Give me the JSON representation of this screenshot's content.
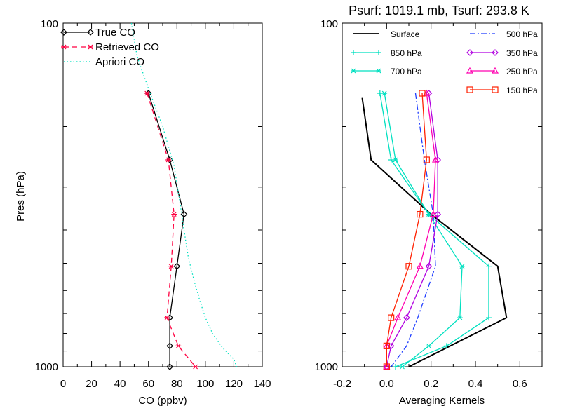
{
  "chart_data": [
    {
      "type": "line",
      "xlabel": "CO (ppbv)",
      "ylabel": "Pres (hPa)",
      "xlim": [
        0,
        140
      ],
      "ylim": [
        1000,
        100
      ],
      "y_scale": "log",
      "x_tick_labels": [
        "0",
        "20",
        "40",
        "60",
        "80",
        "100",
        "120",
        "140"
      ],
      "y_tick_labels": [
        "100",
        "1000"
      ],
      "legend_position": "top-left",
      "series": [
        {
          "name": "True CO",
          "color": "#000000",
          "style": "solid",
          "marker": "diamond",
          "points": [
            [
              60,
              160
            ],
            [
              75,
              250
            ],
            [
              85,
              360
            ],
            [
              80,
              510
            ],
            [
              75,
              720
            ],
            [
              75,
              870
            ],
            [
              75,
              1000
            ]
          ]
        },
        {
          "name": "Retrieved CO",
          "color": "#ff0040",
          "style": "dashed",
          "marker": "asterisk",
          "points": [
            [
              59,
              160
            ],
            [
              74,
              250
            ],
            [
              78,
              360
            ],
            [
              76,
              510
            ],
            [
              73,
              720
            ],
            [
              81,
              870
            ],
            [
              93,
              1000
            ]
          ]
        },
        {
          "name": "Apriori CO",
          "color": "#00e0c0",
          "style": "dotted",
          "marker": "none",
          "points": [
            [
              48,
              100
            ],
            [
              52,
              125
            ],
            [
              60,
              155
            ],
            [
              70,
              200
            ],
            [
              78,
              260
            ],
            [
              82,
              330
            ],
            [
              85,
              400
            ],
            [
              88,
              480
            ],
            [
              92,
              560
            ],
            [
              96,
              640
            ],
            [
              100,
              720
            ],
            [
              105,
              800
            ],
            [
              112,
              880
            ],
            [
              120,
              950
            ],
            [
              122,
              1000
            ]
          ]
        }
      ]
    },
    {
      "type": "line",
      "title": "Psurf: 1019.1 mb, Tsurf: 293.8 K",
      "xlabel": "Averaging Kernels",
      "xlim": [
        -0.2,
        0.7
      ],
      "ylim": [
        1000,
        100
      ],
      "y_scale": "log",
      "x_tick_labels": [
        "-0.2",
        "0.0",
        "0.2",
        "0.4",
        "0.6"
      ],
      "y_tick_labels": [
        "100",
        "1000"
      ],
      "legend_position": "top",
      "series": [
        {
          "name": "Surface",
          "color": "#000000",
          "style": "solid",
          "marker": "none",
          "points": [
            [
              -0.11,
              165
            ],
            [
              -0.07,
              250
            ],
            [
              0.2,
              360
            ],
            [
              0.5,
              510
            ],
            [
              0.54,
              720
            ],
            [
              0.1,
              1000
            ]
          ]
        },
        {
          "name": "850 hPa",
          "color": "#00e0c0",
          "style": "solid",
          "marker": "plus",
          "points": [
            [
              -0.03,
              160
            ],
            [
              0.02,
              250
            ],
            [
              0.19,
              360
            ],
            [
              0.46,
              510
            ],
            [
              0.46,
              720
            ],
            [
              0.27,
              870
            ],
            [
              0.04,
              1000
            ]
          ]
        },
        {
          "name": "700 hPa",
          "color": "#00e0c0",
          "style": "solid",
          "marker": "asterisk",
          "points": [
            [
              -0.01,
              160
            ],
            [
              0.04,
              250
            ],
            [
              0.19,
              360
            ],
            [
              0.34,
              510
            ],
            [
              0.33,
              720
            ],
            [
              0.19,
              870
            ],
            [
              0.07,
              1000
            ]
          ]
        },
        {
          "name": "500 hPa",
          "color": "#1e3cff",
          "style": "dash-dot",
          "marker": "none",
          "points": [
            [
              0.13,
              160
            ],
            [
              0.17,
              250
            ],
            [
              0.21,
              360
            ],
            [
              0.22,
              510
            ],
            [
              0.14,
              720
            ],
            [
              0.09,
              870
            ],
            [
              0.02,
              1000
            ]
          ]
        },
        {
          "name": "350 hPa",
          "color": "#b000e0",
          "style": "solid",
          "marker": "diamond",
          "points": [
            [
              0.19,
              160
            ],
            [
              0.23,
              250
            ],
            [
              0.23,
              360
            ],
            [
              0.19,
              510
            ],
            [
              0.09,
              720
            ],
            [
              0.02,
              870
            ],
            [
              0.0,
              1000
            ]
          ]
        },
        {
          "name": "250 hPa",
          "color": "#ff00b0",
          "style": "solid",
          "marker": "triangle",
          "points": [
            [
              0.18,
              160
            ],
            [
              0.22,
              250
            ],
            [
              0.21,
              360
            ],
            [
              0.15,
              510
            ],
            [
              0.05,
              720
            ],
            [
              0.0,
              870
            ],
            [
              0.0,
              1000
            ]
          ]
        },
        {
          "name": "150 hPa",
          "color": "#ff2000",
          "style": "solid",
          "marker": "square",
          "points": [
            [
              0.16,
              160
            ],
            [
              0.18,
              250
            ],
            [
              0.15,
              360
            ],
            [
              0.1,
              510
            ],
            [
              0.02,
              720
            ],
            [
              0.0,
              870
            ],
            [
              0.0,
              1000
            ]
          ]
        }
      ]
    }
  ]
}
